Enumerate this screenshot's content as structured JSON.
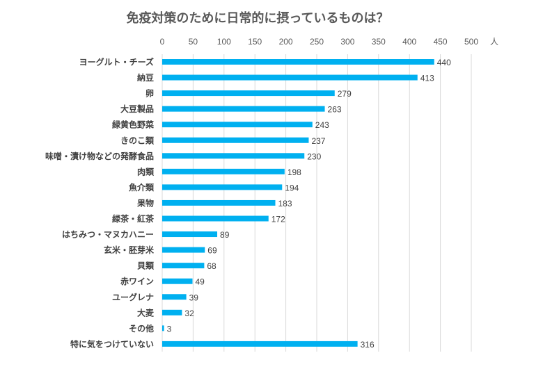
{
  "chart_data": {
    "type": "bar",
    "orientation": "horizontal",
    "title": "免疫対策のために日常的に摂っているものは？",
    "unit": "人",
    "xlim": [
      0,
      500
    ],
    "ticks": [
      0,
      50,
      100,
      150,
      200,
      250,
      300,
      350,
      400,
      450,
      500
    ],
    "grid": true,
    "bar_color": "#00B0F0",
    "categories": [
      "ヨーグルト・チーズ",
      "納豆",
      "卵",
      "大豆製品",
      "緑黄色野菜",
      "きのこ類",
      "味噌・漬け物などの発酵食品",
      "肉類",
      "魚介類",
      "果物",
      "緑茶・紅茶",
      "はちみつ・マヌカハニー",
      "玄米・胚芽米",
      "貝類",
      "赤ワイン",
      "ユーグレナ",
      "大麦",
      "その他",
      "特に気をつけていない"
    ],
    "values": [
      440,
      413,
      279,
      263,
      243,
      237,
      230,
      198,
      194,
      183,
      172,
      89,
      69,
      68,
      49,
      39,
      32,
      3,
      316
    ]
  }
}
